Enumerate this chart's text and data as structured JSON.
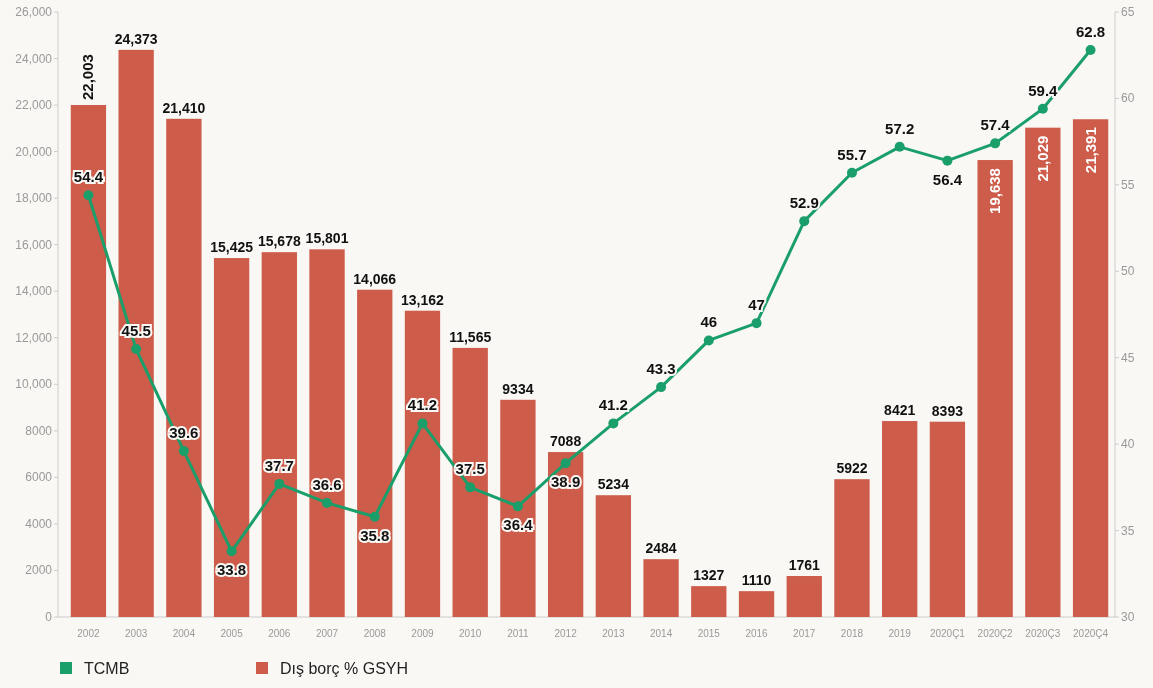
{
  "chart_data": {
    "type": "bar",
    "categories": [
      "2002",
      "2003",
      "2004",
      "2005",
      "2006",
      "2007",
      "2008",
      "2009",
      "2010",
      "2011",
      "2012",
      "2013",
      "2014",
      "2015",
      "2016",
      "2017",
      "2018",
      "2019",
      "2020Ç1",
      "2020Ç2",
      "2020Ç3",
      "2020Ç4"
    ],
    "series": [
      {
        "name": "TCMB",
        "type": "line",
        "axis": "y2",
        "color": "#1a9e6a",
        "values": [
          54.4,
          45.5,
          39.6,
          33.8,
          37.7,
          36.6,
          35.8,
          41.2,
          37.5,
          36.4,
          38.9,
          41.2,
          43.3,
          46,
          47,
          52.9,
          55.7,
          57.2,
          56.4,
          57.4,
          59.4,
          62.8
        ]
      },
      {
        "name": "Dış borç % GSYH",
        "color": "#cd5c4a",
        "values": [
          22003,
          24373,
          21410,
          15425,
          15678,
          15801,
          14066,
          13162,
          11565,
          9334,
          7088,
          5234,
          2484,
          1327,
          1110,
          1761,
          5922,
          8421,
          8393,
          19638,
          21029,
          21391
        ],
        "value_labels": [
          "22,003",
          "24,373",
          "21,410",
          "15,425",
          "15,678",
          "15,801",
          "14,066",
          "13,162",
          "11,565",
          "9334",
          "7088",
          "5234",
          "2484",
          "1327",
          "1110",
          "1761",
          "5922",
          "8421",
          "8393",
          "19,638",
          "21,029",
          "21,391"
        ]
      }
    ],
    "data_labels": true,
    "marker": "circle",
    "ylim": [
      0,
      26000
    ],
    "yticks": [
      0,
      2000,
      4000,
      6000,
      8000,
      {
        "value": 10000,
        "label": "10,000"
      },
      {
        "value": 12000,
        "label": "12,000"
      },
      {
        "value": 14000,
        "label": "14,000"
      },
      {
        "value": 16000,
        "label": "16,000"
      },
      {
        "value": 18000,
        "label": "18,000"
      },
      {
        "value": 20000,
        "label": "20,000"
      },
      {
        "value": 22000,
        "label": "22,000"
      },
      {
        "value": 24000,
        "label": "24,000"
      },
      {
        "value": 26000,
        "label": "26,000"
      }
    ],
    "y2lim": [
      30,
      65
    ],
    "y2ticks": [
      30,
      35,
      40,
      45,
      50,
      55,
      60,
      65
    ],
    "legend": "bottom left",
    "grid": false
  }
}
